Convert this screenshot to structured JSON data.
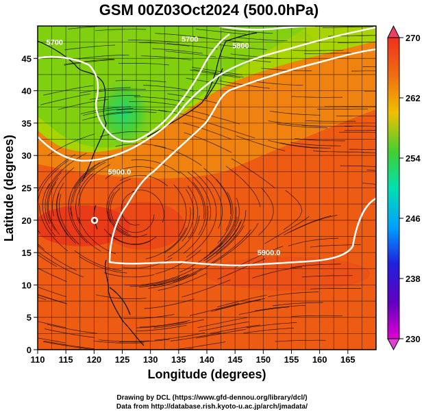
{
  "title": "GSM 00Z03Oct2024 (500.0hPa)",
  "xlabel": "Longitude (degrees)",
  "ylabel": "Latitude  (degrees)",
  "credits": [
    "Drawing by DCL (https://www.gfd-dennou.org/library/dcl/)",
    "Data from http://database.rish.kyoto-u.ac.jp/arch/jmadata/"
  ],
  "x_ticks": [
    "110",
    "115",
    "120",
    "125",
    "130",
    "135",
    "140",
    "145",
    "150",
    "155",
    "160",
    "165"
  ],
  "y_ticks": [
    "0",
    "5",
    "10",
    "15",
    "20",
    "25",
    "30",
    "35",
    "40",
    "45"
  ],
  "colorbar": {
    "ticks": [
      "230",
      "238",
      "246",
      "254",
      "262",
      "270"
    ],
    "range": [
      230,
      270
    ],
    "colors": [
      "#e000d0",
      "#4000c0",
      "#0060ff",
      "#00e0e0",
      "#30d030",
      "#a0e000",
      "#f0c000",
      "#f07000",
      "#f03020"
    ]
  },
  "contour_labels": [
    {
      "text": "5900.0",
      "lon": 151,
      "lat": 15
    },
    {
      "text": "5900.0",
      "lon": 124.5,
      "lat": 27.5
    },
    {
      "text": "5800",
      "lon": 146,
      "lat": 47
    },
    {
      "text": "5700",
      "lon": 113,
      "lat": 47.5
    },
    {
      "text": "5700",
      "lon": 137,
      "lat": 48
    }
  ],
  "chart_data": {
    "type": "heatmap",
    "variable": "500 hPa temperature (K) with geopotential height contours and streamlines",
    "xlim": [
      110,
      170
    ],
    "ylim": [
      0,
      50
    ],
    "zlim": [
      230,
      270
    ],
    "contours": [
      5700,
      5800,
      5900
    ],
    "fields": {
      "warm_core_lat": 20,
      "cold_low_center": {
        "lon": 126,
        "lat": 38,
        "value": 252
      }
    }
  }
}
